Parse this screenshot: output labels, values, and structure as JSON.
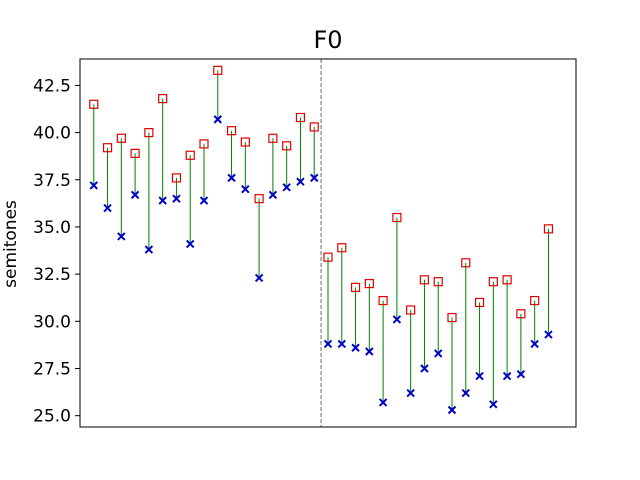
{
  "chart_data": {
    "type": "scatter",
    "title": "F0",
    "xlabel": "",
    "ylabel": "semitones",
    "ylim": [
      24.4,
      43.9
    ],
    "xlim": [
      -1,
      35
    ],
    "yticks": [
      25.0,
      27.5,
      30.0,
      32.5,
      35.0,
      37.5,
      40.0,
      42.5
    ],
    "ytick_labels": [
      "25.0",
      "27.5",
      "30.0",
      "32.5",
      "35.0",
      "37.5",
      "40.0",
      "42.5"
    ],
    "xticks": [],
    "grid": false,
    "divider_x": 16.5,
    "series": [
      {
        "marker": "square",
        "color": "#e00000",
        "x": [
          0,
          1,
          2,
          3,
          4,
          5,
          6,
          7,
          8,
          9,
          10,
          11,
          12,
          13,
          14,
          15,
          16,
          17,
          18,
          19,
          20,
          21,
          22,
          23,
          24,
          25,
          26,
          27,
          28,
          29,
          30,
          31,
          32,
          33
        ],
        "values": [
          41.5,
          39.2,
          39.7,
          38.9,
          40.0,
          41.8,
          37.6,
          38.8,
          39.4,
          43.3,
          40.1,
          39.5,
          36.5,
          39.7,
          39.3,
          40.8,
          40.3,
          33.4,
          33.9,
          31.8,
          32.0,
          31.1,
          35.5,
          30.6,
          32.2,
          32.1,
          30.2,
          33.1,
          31.0,
          32.1,
          32.2,
          30.4,
          31.1,
          34.9
        ]
      },
      {
        "marker": "x",
        "color": "#0000c8",
        "x": [
          0,
          1,
          2,
          3,
          4,
          5,
          6,
          7,
          8,
          9,
          10,
          11,
          12,
          13,
          14,
          15,
          16,
          17,
          18,
          19,
          20,
          21,
          22,
          23,
          24,
          25,
          26,
          27,
          28,
          29,
          30,
          31,
          32,
          33
        ],
        "values": [
          37.2,
          36.0,
          34.5,
          36.7,
          33.8,
          36.4,
          36.5,
          34.1,
          36.4,
          40.7,
          37.6,
          37.0,
          32.3,
          36.7,
          37.1,
          37.4,
          37.6,
          28.8,
          28.8,
          28.6,
          28.4,
          25.7,
          30.1,
          26.2,
          27.5,
          28.3,
          25.3,
          26.2,
          27.1,
          25.6,
          27.1,
          27.2,
          28.8,
          29.3
        ]
      }
    ],
    "connector_color": "#008000"
  }
}
